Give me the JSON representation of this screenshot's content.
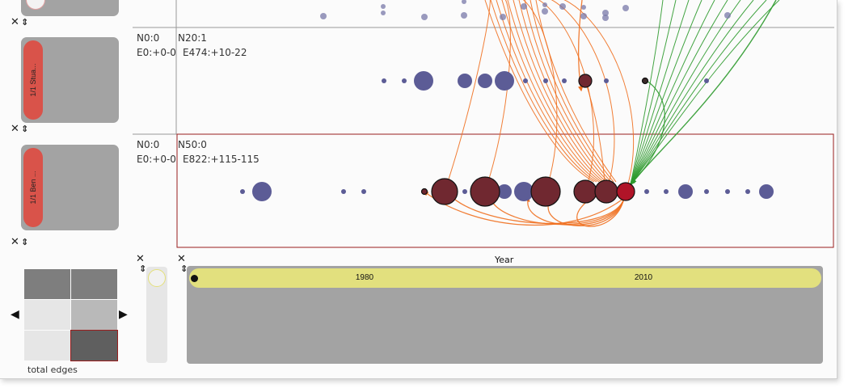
{
  "facets": [
    {
      "label": "1/1 Stua..."
    },
    {
      "label": "1/1 Ben ..."
    }
  ],
  "panels": [
    {
      "nodes_left": "N0:0",
      "edges_left": "E0:+0-0",
      "nodes_right": "N20:1",
      "edges_right": "E474:+10-22"
    },
    {
      "nodes_left": "N0:0",
      "edges_left": "E0:+0-0",
      "nodes_right": "N50:0",
      "edges_right": "E822:+115-115"
    }
  ],
  "matrix": {
    "label": "total edges"
  },
  "timeline": {
    "axis_label": "Year",
    "ticks": [
      "1980",
      "2010"
    ]
  },
  "icons": {
    "close": "close-icon",
    "move": "move-icon",
    "prev": "arrow-left-icon",
    "next": "arrow-right-icon"
  },
  "colors": {
    "node": "#5c5c96",
    "highlight": "#b01428",
    "selected_node": "#702830",
    "incoming": "#2e9a2e",
    "outgoing": "#f07020",
    "panel_border": "#9a1e1e",
    "timeline_bar": "#e2e07e"
  }
}
